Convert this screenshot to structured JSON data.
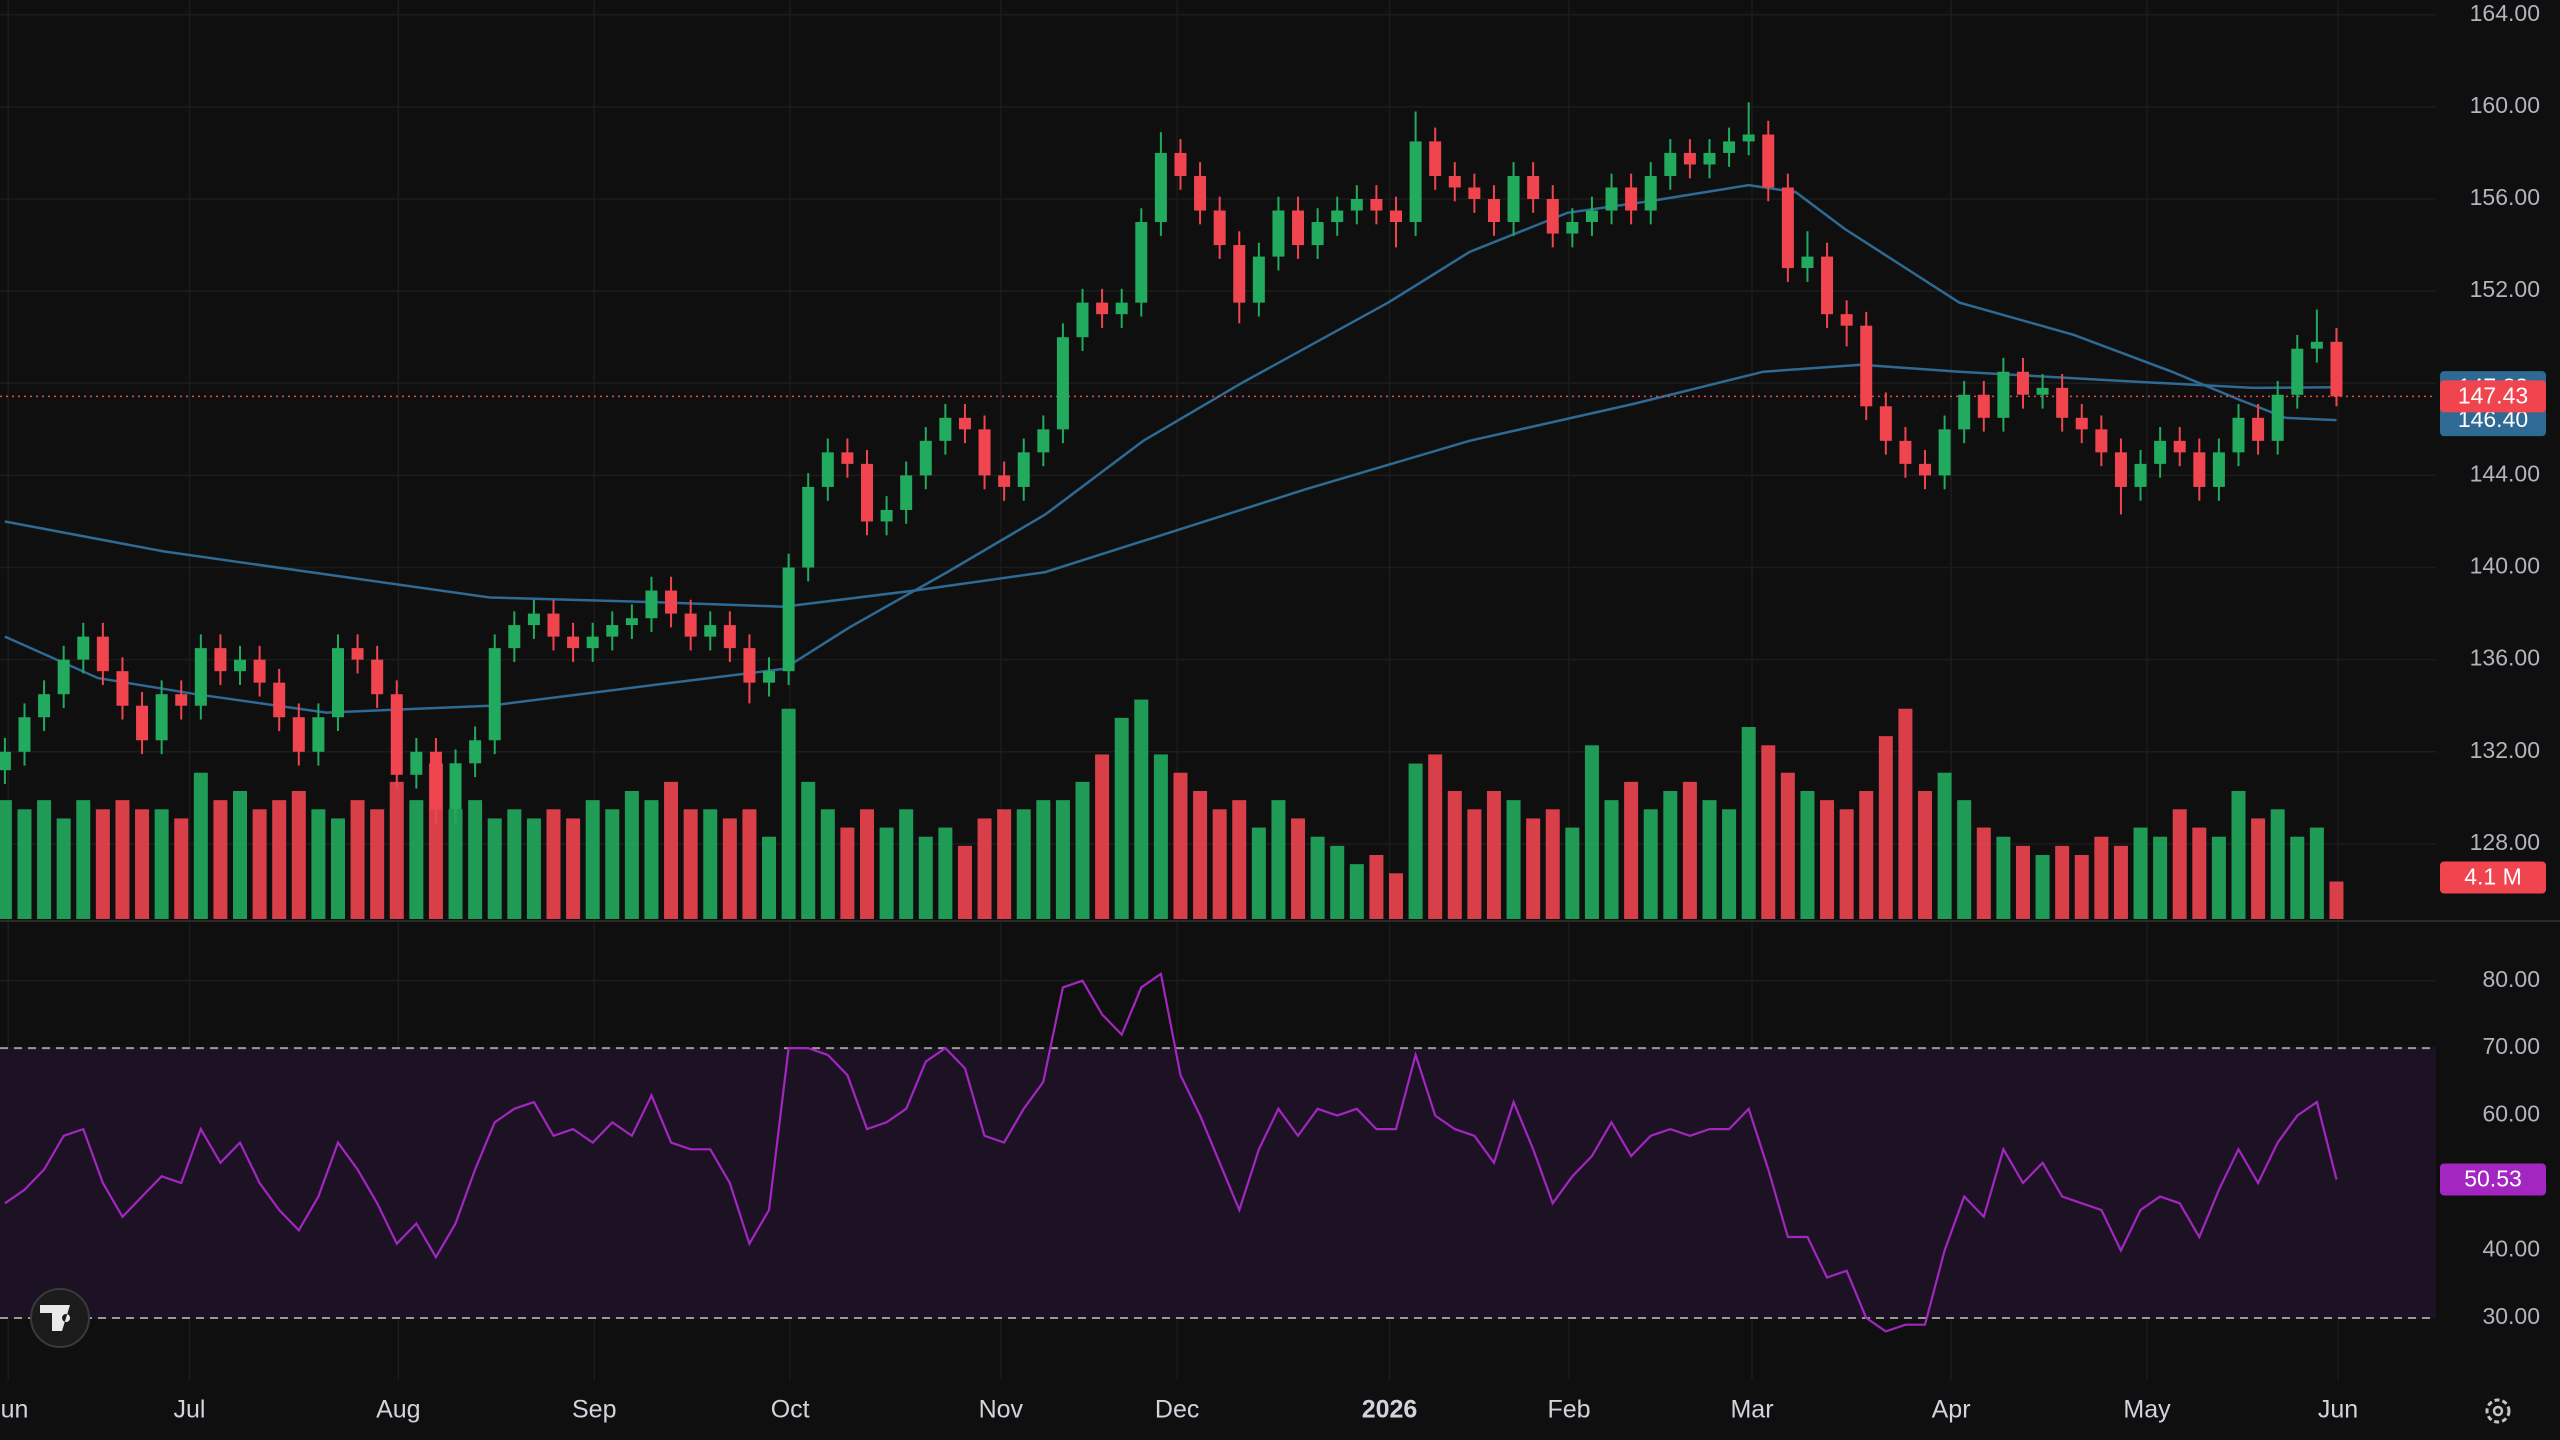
{
  "chart_data": {
    "type": "candlestick",
    "colors": {
      "up": "#22ab5e",
      "down": "#f0454f"
    },
    "grid": true,
    "xlim": [
      -0.25,
      124.08
    ],
    "xticks": [
      {
        "value": 0.17,
        "label": "Jun"
      },
      {
        "value": 9.42,
        "label": "Jul"
      },
      {
        "value": 20.08,
        "label": "Aug"
      },
      {
        "value": 30.08,
        "label": "Sep"
      },
      {
        "value": 40.08,
        "label": "Oct"
      },
      {
        "value": 50.83,
        "label": "Nov"
      },
      {
        "value": 59.83,
        "label": "Dec"
      },
      {
        "value": 70.67,
        "label": "2026",
        "bold": true
      },
      {
        "value": 79.83,
        "label": "Feb"
      },
      {
        "value": 89.17,
        "label": "Mar"
      },
      {
        "value": 99.33,
        "label": "Apr"
      },
      {
        "value": 109.33,
        "label": "May"
      },
      {
        "value": 119.08,
        "label": "Jun"
      }
    ],
    "ylim": [
      124.74,
      164.64
    ],
    "yticks": [
      {
        "value": 128,
        "label": "128.00"
      },
      {
        "value": 132,
        "label": "132.00"
      },
      {
        "value": 136,
        "label": "136.00"
      },
      {
        "value": 140,
        "label": "140.00"
      },
      {
        "value": 144,
        "label": "144.00"
      },
      {
        "value": 148,
        "label": "148.00"
      },
      {
        "value": 152,
        "label": "152.00"
      },
      {
        "value": 156,
        "label": "156.00"
      },
      {
        "value": 160,
        "label": "160.00"
      },
      {
        "value": 164,
        "label": "164.00"
      }
    ],
    "open": [
      131.2,
      132,
      133.5,
      134.5,
      136,
      137,
      135.5,
      134,
      132.5,
      134.5,
      134,
      136.5,
      135.5,
      136,
      135,
      133.5,
      132,
      133.5,
      136.5,
      136,
      134.5,
      131,
      132,
      129.5,
      131.5,
      132.5,
      136.5,
      137.5,
      138,
      137,
      136.5,
      137,
      137.5,
      137.8,
      139,
      138,
      137,
      137.5,
      136.5,
      135,
      135.5,
      140,
      143.5,
      145,
      144.5,
      142,
      142.5,
      144,
      145.5,
      146.5,
      146,
      144,
      143.5,
      145,
      146,
      150,
      151.5,
      151,
      151.5,
      155,
      158,
      157,
      155.5,
      154,
      151.5,
      153.5,
      155.5,
      154,
      155,
      155.5,
      156,
      155.5,
      155,
      158.5,
      157,
      156.5,
      156,
      155,
      157,
      156,
      154.5,
      155,
      155.5,
      156.5,
      155.5,
      157,
      158,
      157.5,
      158,
      158.5,
      158.8,
      156.5,
      153,
      153.5,
      151,
      150.5,
      147,
      145.5,
      144.5,
      144,
      146,
      147.5,
      146.5,
      148.5,
      147.5,
      147.8,
      146.5,
      146,
      145,
      143.5,
      144.5,
      145.5,
      145,
      143.5,
      145,
      146.5,
      145.5,
      147.5,
      149.5,
      149.8
    ],
    "high": [
      132.6,
      134.1,
      135.1,
      136.6,
      137.6,
      137.6,
      136.1,
      134.6,
      135.1,
      135.1,
      137.1,
      137.1,
      136.6,
      136.6,
      135.6,
      134.1,
      134.1,
      137.1,
      137.1,
      136.6,
      135.1,
      132.6,
      132.6,
      132.1,
      133.1,
      137.1,
      138.1,
      138.6,
      138.6,
      137.6,
      137.6,
      138.1,
      138.4,
      139.6,
      139.6,
      138.6,
      138.1,
      138.1,
      137.1,
      136.1,
      140.6,
      144.1,
      145.6,
      145.6,
      145.1,
      143.1,
      144.6,
      146.1,
      147.1,
      147.1,
      146.6,
      144.6,
      145.6,
      146.6,
      150.6,
      152.1,
      152.1,
      152.1,
      155.6,
      158.9,
      158.6,
      157.6,
      156.1,
      154.6,
      154.1,
      156.1,
      156.1,
      155.6,
      156.1,
      156.6,
      156.6,
      156.1,
      159.8,
      159.1,
      157.6,
      157.1,
      156.6,
      157.6,
      157.6,
      156.6,
      155.6,
      156.1,
      157.1,
      157.1,
      157.6,
      158.6,
      158.6,
      158.6,
      159.1,
      160.2,
      159.4,
      157.1,
      154.6,
      154.1,
      151.6,
      151.1,
      147.6,
      146.1,
      145.1,
      146.6,
      148.1,
      148.1,
      149.1,
      149.1,
      148.4,
      148.4,
      147.1,
      146.6,
      145.6,
      145.1,
      146.1,
      146.1,
      145.6,
      145.6,
      147.1,
      147.1,
      148.1,
      150.1,
      151.2,
      150.4
    ],
    "low": [
      130.6,
      131.4,
      132.9,
      133.9,
      135.4,
      134.9,
      133.4,
      131.9,
      131.9,
      133.4,
      133.4,
      134.9,
      134.9,
      134.4,
      132.9,
      131.4,
      131.4,
      132.9,
      135.4,
      133.9,
      130.4,
      130.4,
      128.9,
      128.9,
      130.9,
      131.9,
      135.9,
      136.9,
      136.4,
      135.9,
      135.9,
      136.4,
      136.9,
      137.2,
      137.4,
      136.4,
      136.4,
      135.9,
      134.1,
      134.4,
      134.9,
      139.4,
      142.9,
      143.9,
      141.4,
      141.4,
      141.9,
      143.4,
      144.9,
      145.4,
      143.4,
      142.9,
      142.9,
      144.4,
      145.4,
      149.4,
      150.4,
      150.4,
      150.9,
      154.4,
      156.4,
      154.9,
      153.4,
      150.6,
      150.9,
      152.9,
      153.4,
      153.4,
      154.4,
      154.9,
      154.9,
      153.9,
      154.4,
      156.4,
      155.9,
      155.4,
      154.4,
      154.4,
      155.4,
      153.9,
      153.9,
      154.4,
      154.9,
      154.9,
      154.9,
      156.4,
      156.9,
      156.9,
      157.4,
      157.9,
      155.9,
      152.4,
      152.4,
      150.4,
      149.6,
      146.4,
      144.9,
      143.9,
      143.4,
      143.4,
      145.4,
      145.9,
      145.9,
      146.9,
      146.9,
      145.9,
      145.4,
      144.4,
      142.3,
      142.9,
      143.9,
      144.4,
      142.9,
      142.9,
      144.4,
      144.9,
      144.9,
      146.9,
      148.9,
      147.0
    ],
    "close": [
      132,
      133.5,
      134.5,
      136,
      137,
      135.5,
      134,
      132.5,
      134.5,
      134,
      136.5,
      135.5,
      136,
      135,
      133.5,
      132,
      133.5,
      136.5,
      136,
      134.5,
      131,
      132,
      129.5,
      131.5,
      132.5,
      136.5,
      137.5,
      138,
      137,
      136.5,
      137,
      137.5,
      137.8,
      139,
      138,
      137,
      137.5,
      136.5,
      135,
      135.5,
      140,
      143.5,
      145,
      144.5,
      142,
      142.5,
      144,
      145.5,
      146.5,
      146,
      144,
      143.5,
      145,
      146,
      150,
      151.5,
      151,
      151.5,
      155,
      158,
      157,
      155.5,
      154,
      151.5,
      153.5,
      155.5,
      154,
      155,
      155.5,
      156,
      155.5,
      155,
      158.5,
      157,
      156.5,
      156,
      155,
      157,
      156,
      154.5,
      155,
      155.5,
      156.5,
      155.5,
      157,
      158,
      157.5,
      158,
      158.5,
      158.8,
      156.5,
      153,
      153.5,
      151,
      150.5,
      147,
      145.5,
      144.5,
      144,
      146,
      147.5,
      146.5,
      148.5,
      147.5,
      147.8,
      146.5,
      146,
      145,
      143.5,
      144.5,
      145.5,
      145,
      143.5,
      145,
      146.5,
      145.5,
      147.5,
      149.5,
      149.8,
      147.43
    ],
    "close_label": {
      "value": 147.43,
      "label": "147.43"
    },
    "moving_averages": [
      {
        "color": "#2e6a94",
        "x": [
          0,
          8.1,
          16.4,
          24.75,
          33.1,
          39.75,
          46.4,
          53.1,
          59.75,
          66.4,
          74.75,
          83.1,
          89.75,
          94.75,
          99.75,
          108.1,
          114.75,
          119
        ],
        "values": [
          142.0,
          140.7,
          139.7,
          138.7,
          138.5,
          138.3,
          139.0,
          139.8,
          141.6,
          143.4,
          145.5,
          147.1,
          148.5,
          148.8,
          148.5,
          148.1,
          147.8,
          147.83
        ],
        "last": {
          "value": 147.83,
          "label": "147.83"
        }
      },
      {
        "color": "#2e6a94",
        "x": [
          0,
          4.75,
          9.75,
          16.4,
          24.75,
          33.1,
          39.75,
          43.1,
          48.1,
          53.1,
          58.1,
          63.1,
          70.6,
          74.75,
          79.75,
          83.9,
          89,
          91.4,
          93.9,
          99.75,
          105.6,
          110.6,
          114,
          116.4,
          119
        ],
        "values": [
          137.0,
          135.2,
          134.5,
          133.7,
          134.0,
          134.9,
          135.6,
          137.4,
          139.8,
          142.3,
          145.5,
          148.0,
          151.5,
          153.7,
          155.4,
          155.9,
          156.6,
          156.3,
          154.7,
          151.5,
          150.1,
          148.5,
          147.3,
          146.5,
          146.4
        ],
        "last": {
          "value": 146.4,
          "label": "146.40"
        }
      }
    ],
    "volume": {
      "ylim": [
        0,
        28
      ],
      "values": [
        13,
        12,
        13,
        11,
        13,
        12,
        13,
        12,
        12,
        11,
        16,
        13,
        14,
        12,
        13,
        14,
        12,
        11,
        13,
        12,
        15,
        13,
        17,
        12,
        13,
        11,
        12,
        11,
        12,
        11,
        13,
        12,
        14,
        13,
        15,
        12,
        12,
        11,
        12,
        9,
        23,
        15,
        12,
        10,
        12,
        10,
        12,
        9,
        10,
        8,
        11,
        12,
        12,
        13,
        13,
        15,
        18,
        22,
        24,
        18,
        16,
        14,
        12,
        13,
        10,
        13,
        11,
        9,
        8,
        6,
        7,
        5,
        17,
        18,
        14,
        12,
        14,
        13,
        11,
        12,
        10,
        19,
        13,
        15,
        12,
        14,
        15,
        13,
        12,
        21,
        19,
        16,
        14,
        13,
        12,
        14,
        20,
        23,
        14,
        16,
        13,
        10,
        9,
        8,
        7,
        8,
        7,
        9,
        8,
        10,
        9,
        12,
        10,
        9,
        14,
        11,
        12,
        9,
        10,
        4.1
      ],
      "last": {
        "value": 4.1,
        "label": "4.1 M"
      }
    },
    "rsi": {
      "color": "#a326c0",
      "band_color": "#1c1224",
      "ylim": [
        20.8,
        88.7
      ],
      "yticks": [
        {
          "value": 30,
          "label": "30.00"
        },
        {
          "value": 40,
          "label": "40.00"
        },
        {
          "value": 50,
          "label": "50.00"
        },
        {
          "value": 60,
          "label": "60.00"
        },
        {
          "value": 70,
          "label": "70.00"
        },
        {
          "value": 80,
          "label": "80.00"
        }
      ],
      "band": {
        "lower": 30,
        "upper": 70
      },
      "values": [
        47,
        49,
        52,
        57,
        58,
        50,
        45,
        48,
        51,
        50,
        58,
        53,
        56,
        50,
        46,
        43,
        48,
        56,
        52,
        47,
        41,
        44,
        39,
        44,
        52,
        59,
        61,
        62,
        57,
        58,
        56,
        59,
        57,
        63,
        56,
        55,
        55,
        50,
        41,
        46,
        70,
        70,
        69,
        66,
        58,
        59,
        61,
        68,
        70,
        67,
        57,
        56,
        61,
        65,
        79,
        80,
        75,
        72,
        79,
        81,
        66,
        60,
        53,
        46,
        55,
        61,
        57,
        61,
        60,
        61,
        58,
        58,
        69,
        60,
        58,
        57,
        53,
        62,
        55,
        47,
        51,
        54,
        59,
        54,
        57,
        58,
        57,
        58,
        58,
        61,
        52,
        42,
        42,
        36,
        37,
        30,
        28,
        29,
        29,
        40,
        48,
        45,
        55,
        50,
        53,
        48,
        47,
        46,
        40,
        46,
        48,
        47,
        42,
        49,
        55,
        50,
        56,
        60,
        62,
        50.53
      ],
      "last": {
        "value": 50.53,
        "label": "50.53"
      }
    }
  }
}
